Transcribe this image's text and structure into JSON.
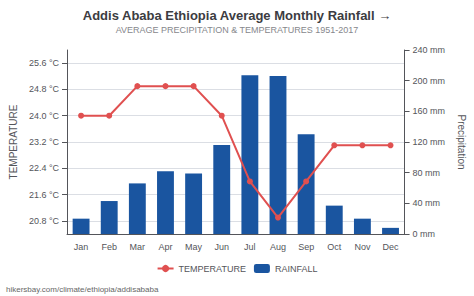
{
  "chart_data": {
    "type": "bar",
    "title": "Addis Ababa Ethiopia Average Monthly Rainfall →",
    "subtitle": "AVERAGE PRECIPITATION & TEMPERATURES 1951-2017",
    "categories": [
      "Jan",
      "Feb",
      "Mar",
      "Apr",
      "May",
      "Jun",
      "Jul",
      "Aug",
      "Sep",
      "Oct",
      "Nov",
      "Dec"
    ],
    "series": [
      {
        "name": "TEMPERATURE",
        "type": "line",
        "axis": "y",
        "color": "#e05050",
        "marker": "o",
        "values": [
          24.0,
          24.0,
          24.9,
          24.9,
          24.9,
          24.0,
          22.0,
          20.9,
          22.0,
          23.1,
          23.1,
          23.1
        ]
      },
      {
        "name": "RAINFALL",
        "type": "bar",
        "axis": "y2",
        "color": "#1a55a0",
        "values": [
          20,
          43,
          66,
          82,
          79,
          116,
          207,
          206,
          130,
          37,
          20,
          8
        ]
      }
    ],
    "ylabel": "TEMPERATURE",
    "y2label": "Precipitation",
    "ylim": [
      20.4,
      26.0
    ],
    "yticks": [
      {
        "value": 20.8,
        "label": "20.8 °C"
      },
      {
        "value": 21.6,
        "label": "21.6 °C"
      },
      {
        "value": 22.4,
        "label": "22.4 °C"
      },
      {
        "value": 23.2,
        "label": "23.2 °C"
      },
      {
        "value": 24.0,
        "label": "24.0 °C"
      },
      {
        "value": 24.8,
        "label": "24.8 °C"
      },
      {
        "value": 25.6,
        "label": "25.6 °C"
      }
    ],
    "y2lim": [
      0,
      240
    ],
    "y2ticks": [
      {
        "value": 0,
        "label": "0 mm"
      },
      {
        "value": 40,
        "label": "40 mm"
      },
      {
        "value": 80,
        "label": "80 mm"
      },
      {
        "value": 120,
        "label": "120 mm"
      },
      {
        "value": 160,
        "label": "160 mm"
      },
      {
        "value": 200,
        "label": "200 mm"
      },
      {
        "value": 240,
        "label": "240 mm"
      }
    ],
    "grid": true,
    "legend": "bottom",
    "annotations": [
      "hikersbay.com/climate/ethiopia/addisababa"
    ]
  }
}
